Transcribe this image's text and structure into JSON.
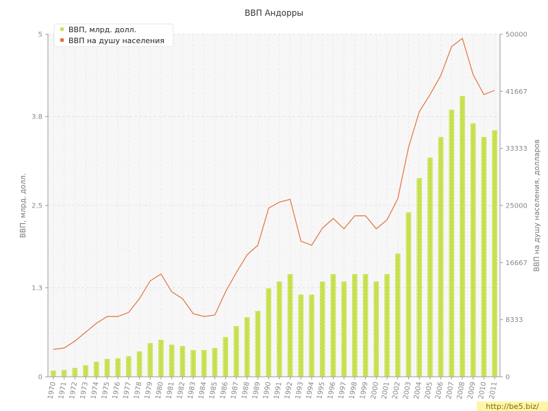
{
  "chart_data": {
    "type": "bar",
    "title": "ВВП Андорры",
    "ylabel_left": "ВВП, млрд. долл.",
    "ylabel_right": "ВВП на душу населения, долларов",
    "left_ticks": [
      "0",
      "1.3",
      "2.5",
      "3.8",
      "5"
    ],
    "right_ticks": [
      "0",
      "8333",
      "16667",
      "25000",
      "33333",
      "41667",
      "50000"
    ],
    "ylim_left": [
      0,
      5
    ],
    "ylim_right": [
      0,
      50000
    ],
    "grid": true,
    "legend_position": "top-left",
    "categories": [
      "1970",
      "1971",
      "1972",
      "1973",
      "1974",
      "1975",
      "1976",
      "1977",
      "1978",
      "1979",
      "1980",
      "1981",
      "1982",
      "1983",
      "1984",
      "1985",
      "1986",
      "1987",
      "1988",
      "1989",
      "1990",
      "1991",
      "1992",
      "1993",
      "1994",
      "1995",
      "1996",
      "1997",
      "1998",
      "1999",
      "2000",
      "2001",
      "2002",
      "2003",
      "2004",
      "2005",
      "2006",
      "2007",
      "2008",
      "2009",
      "2010",
      "2011"
    ],
    "series": [
      {
        "name": "ВВП, млрд. долл.",
        "kind": "bar",
        "axis": "left",
        "color": "#c5e04f",
        "values": [
          0.09,
          0.1,
          0.13,
          0.17,
          0.22,
          0.26,
          0.27,
          0.3,
          0.37,
          0.49,
          0.54,
          0.47,
          0.45,
          0.39,
          0.39,
          0.42,
          0.58,
          0.74,
          0.87,
          0.96,
          1.29,
          1.39,
          1.5,
          1.2,
          1.2,
          1.39,
          1.5,
          1.39,
          1.5,
          1.5,
          1.39,
          1.5,
          1.8,
          2.4,
          2.9,
          3.2,
          3.5,
          3.9,
          4.1,
          3.7,
          3.5,
          3.6
        ]
      },
      {
        "name": "ВВП на душу населения",
        "kind": "line",
        "axis": "right",
        "color": "#e2703a",
        "values": [
          4000,
          4200,
          5200,
          6500,
          7800,
          8800,
          8800,
          9400,
          11400,
          14000,
          15000,
          12400,
          11400,
          9200,
          8800,
          9000,
          12400,
          15200,
          17800,
          19200,
          24600,
          25500,
          25900,
          19800,
          19200,
          21700,
          23100,
          21600,
          23500,
          23500,
          21600,
          22900,
          26000,
          33500,
          38700,
          41200,
          44000,
          48200,
          49400,
          44100,
          41200,
          41800
        ]
      }
    ]
  },
  "watermark": "http://be5.biz/"
}
